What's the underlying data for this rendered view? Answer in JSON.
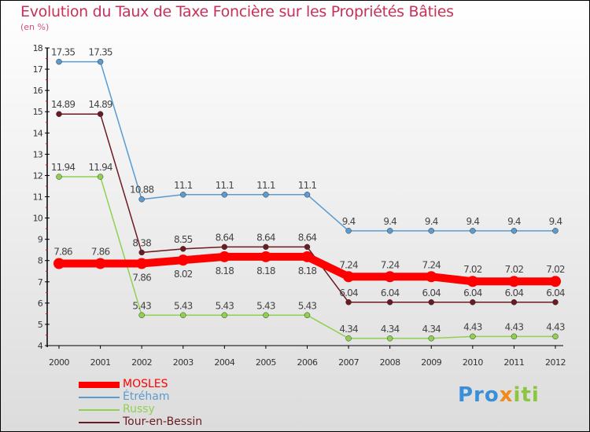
{
  "title": "Evolution du Taux de Taxe Foncière sur les Propriétés Bâties",
  "subtitle": "(en %)",
  "logo": "Proxiti",
  "chart_data": {
    "type": "line",
    "title": "Evolution du Taux de Taxe Foncière sur les Propriétés Bâties",
    "ylabel": "(en %)",
    "x": [
      "2000",
      "2001",
      "2002",
      "2003",
      "2004",
      "2005",
      "2006",
      "2007",
      "2008",
      "2009",
      "2010",
      "2011",
      "2012"
    ],
    "ylim": [
      4,
      18
    ],
    "yticks": [
      "4",
      "5",
      "6",
      "7",
      "8",
      "9",
      "10",
      "11",
      "12",
      "13",
      "14",
      "15",
      "16",
      "17",
      "18"
    ],
    "legend_position": "bottom-left",
    "series": [
      {
        "name": "Tour-en-Bessin",
        "color": "#6b1a22",
        "values": [
          14.89,
          14.89,
          8.38,
          8.55,
          8.64,
          8.64,
          8.64,
          6.04,
          6.04,
          6.04,
          6.04,
          6.04,
          6.04
        ],
        "labels": [
          "14.89",
          "14.89",
          "8.38",
          "8.55",
          "8.64",
          "8.64",
          "8.64",
          "6.04",
          "6.04",
          "6.04",
          "6.04",
          "6.04",
          "6.04"
        ]
      },
      {
        "name": "Russy",
        "color": "#8fd14f",
        "values": [
          11.94,
          11.94,
          5.43,
          5.43,
          5.43,
          5.43,
          5.43,
          4.34,
          4.34,
          4.34,
          4.43,
          4.43,
          4.43
        ],
        "labels": [
          "11.94",
          "11.94",
          "5.43",
          "5.43",
          "5.43",
          "5.43",
          "5.43",
          "4.34",
          "4.34",
          "4.34",
          "4.43",
          "4.43",
          "4.43"
        ]
      },
      {
        "name": "Étréham",
        "color": "#5b9bd0",
        "values": [
          17.35,
          17.35,
          10.88,
          11.1,
          11.1,
          11.1,
          11.1,
          9.4,
          9.4,
          9.4,
          9.4,
          9.4,
          9.4
        ],
        "labels": [
          "17.35",
          "17.35",
          "10.88",
          "11.1",
          "11.1",
          "11.1",
          "11.1",
          "9.4",
          "9.4",
          "9.4",
          "9.4",
          "9.4",
          "9.4"
        ]
      },
      {
        "name": "MOSLES",
        "color": "#ff0000",
        "values": [
          7.86,
          7.86,
          7.86,
          8.02,
          8.18,
          8.18,
          8.18,
          7.24,
          7.24,
          7.24,
          7.02,
          7.02,
          7.02
        ],
        "labels": [
          "7.86",
          "7.86",
          "7.86",
          "8.02",
          "8.18",
          "8.18",
          "8.18",
          "7.24",
          "7.24",
          "7.24",
          "7.02",
          "7.02",
          "7.02"
        ]
      }
    ],
    "legend": [
      "MOSLES",
      "Étréham",
      "Russy",
      "Tour-en-Bessin"
    ]
  }
}
